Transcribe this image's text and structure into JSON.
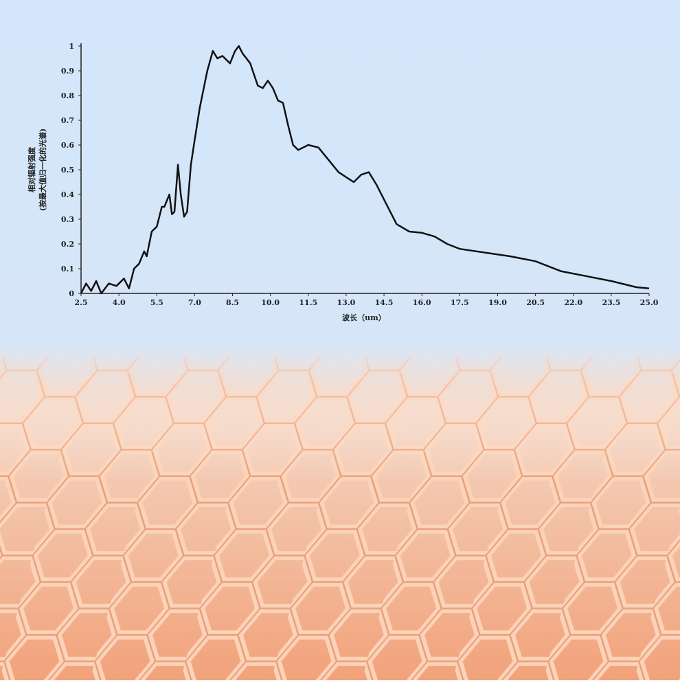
{
  "chart_data": {
    "type": "line",
    "x_label": "波长（um）",
    "y_label": [
      "相对辐射强度",
      "(按最大值归一化的光谱)"
    ],
    "color": "#111111",
    "x": [
      2.5,
      2.7,
      2.9,
      3.1,
      3.3,
      3.6,
      3.9,
      4.2,
      4.4,
      4.6,
      4.8,
      5.0,
      5.1,
      5.3,
      5.5,
      5.7,
      5.8,
      6.0,
      6.1,
      6.2,
      6.34,
      6.45,
      6.58,
      6.7,
      6.85,
      7.0,
      7.2,
      7.5,
      7.72,
      7.9,
      8.1,
      8.4,
      8.6,
      8.75,
      8.9,
      9.2,
      9.5,
      9.7,
      9.9,
      10.1,
      10.3,
      10.5,
      10.7,
      10.9,
      11.1,
      11.5,
      11.9,
      12.3,
      12.7,
      13.0,
      13.3,
      13.6,
      13.9,
      14.2,
      14.6,
      15.0,
      15.5,
      16.0,
      16.5,
      17.0,
      17.5,
      18.5,
      19.5,
      20.5,
      21.5,
      22.5,
      23.5,
      24.5,
      25.0
    ],
    "values": [
      0.0,
      0.04,
      0.01,
      0.05,
      0.0,
      0.04,
      0.03,
      0.06,
      0.02,
      0.1,
      0.12,
      0.17,
      0.15,
      0.25,
      0.27,
      0.35,
      0.35,
      0.4,
      0.32,
      0.33,
      0.52,
      0.4,
      0.31,
      0.33,
      0.52,
      0.62,
      0.75,
      0.9,
      0.98,
      0.95,
      0.96,
      0.93,
      0.98,
      1.0,
      0.97,
      0.93,
      0.84,
      0.83,
      0.86,
      0.83,
      0.78,
      0.77,
      0.68,
      0.6,
      0.58,
      0.6,
      0.59,
      0.54,
      0.49,
      0.47,
      0.45,
      0.48,
      0.49,
      0.44,
      0.36,
      0.28,
      0.25,
      0.245,
      0.23,
      0.2,
      0.18,
      0.165,
      0.15,
      0.13,
      0.09,
      0.07,
      0.05,
      0.025,
      0.02
    ],
    "xlim": [
      2.5,
      25.0
    ],
    "ylim": [
      0,
      1
    ],
    "xticks": [
      2.5,
      {
        "value": 4,
        "label": "4.0"
      },
      5.5,
      {
        "value": 7,
        "label": "7.0"
      },
      8.5,
      {
        "value": 10,
        "label": "10.0"
      },
      11.5,
      {
        "value": 13,
        "label": "13.0"
      },
      14.5,
      {
        "value": 16,
        "label": "16.0"
      },
      17.5,
      {
        "value": 19,
        "label": "19.0"
      },
      20.5,
      {
        "value": 22,
        "label": "22.0"
      },
      23.5,
      {
        "value": 25,
        "label": "25.0"
      }
    ],
    "yticks": [
      0,
      0.1,
      0.2,
      0.3,
      0.4,
      0.5,
      0.6,
      0.7,
      0.8,
      0.9,
      1
    ]
  }
}
